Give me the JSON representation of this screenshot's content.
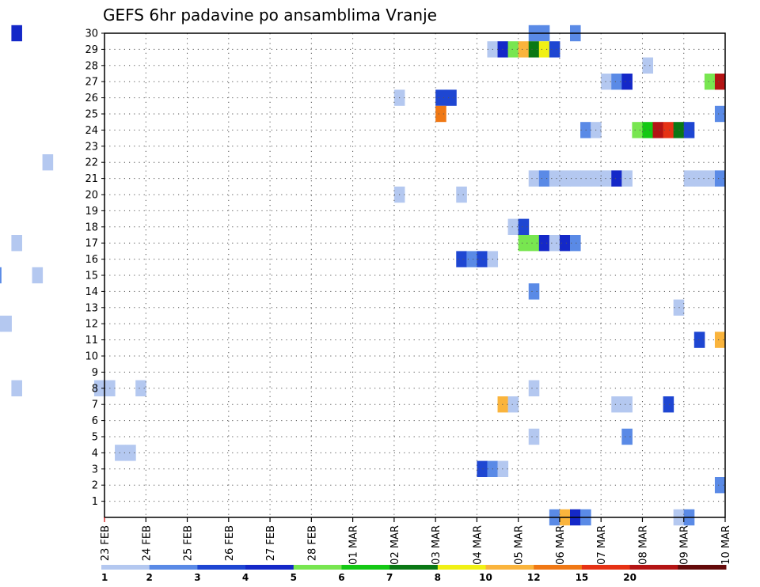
{
  "chart_data": {
    "type": "heatmap",
    "title": "GEFS 6hr padavine po ansamblima Vranje",
    "y_ticks": [
      "1",
      "2",
      "3",
      "4",
      "5",
      "6",
      "7",
      "8",
      "9",
      "10",
      "11",
      "12",
      "13",
      "14",
      "15",
      "16",
      "17",
      "18",
      "19",
      "20",
      "21",
      "22",
      "23",
      "24",
      "25",
      "26",
      "27",
      "28",
      "29",
      "30"
    ],
    "x_ticks": [
      "23 FEB",
      "24 FEB",
      "25 FEB",
      "26 FEB",
      "27 FEB",
      "28 FEB",
      "01 MAR",
      "02 MAR",
      "03 MAR",
      "04 MAR",
      "05 MAR",
      "06 MAR",
      "07 MAR",
      "08 MAR",
      "09 MAR",
      "10 MAR"
    ],
    "x_unit": "6-hour step",
    "grid": true,
    "colorscale": {
      "labels": [
        "1",
        "2",
        "3",
        "4",
        "5",
        "6",
        "7",
        "8",
        "10",
        "12",
        "15",
        "20"
      ],
      "colors": [
        "#b4c8f0",
        "#5a8ae6",
        "#1e46d2",
        "#1428c8",
        "#78e650",
        "#14c814",
        "#0a7814",
        "#f0f014",
        "#fab43c",
        "#f07814",
        "#e63214",
        "#b41414",
        "#640a0a"
      ]
    },
    "cells": [
      {
        "member": 30,
        "step": 52,
        "cls": 4
      },
      {
        "member": 30,
        "step": 102,
        "cls": 2
      },
      {
        "member": 30,
        "step": 103,
        "cls": 2
      },
      {
        "member": 30,
        "step": 106,
        "cls": 2
      },
      {
        "member": 29,
        "step": 98,
        "cls": 1
      },
      {
        "member": 29,
        "step": 99,
        "cls": 4
      },
      {
        "member": 29,
        "step": 100,
        "cls": 5
      },
      {
        "member": 29,
        "step": 101,
        "cls": 9
      },
      {
        "member": 29,
        "step": 102,
        "cls": 7
      },
      {
        "member": 29,
        "step": 103,
        "cls": 8
      },
      {
        "member": 29,
        "step": 104,
        "cls": 3
      },
      {
        "member": 28,
        "step": 113,
        "cls": 1
      },
      {
        "member": 27,
        "step": 109,
        "cls": 1
      },
      {
        "member": 27,
        "step": 110,
        "cls": 2
      },
      {
        "member": 27,
        "step": 111,
        "cls": 4
      },
      {
        "member": 27,
        "step": 119,
        "cls": 5
      },
      {
        "member": 27,
        "step": 120,
        "cls": 12
      },
      {
        "member": 26,
        "step": 89,
        "cls": 1
      },
      {
        "member": 26,
        "step": 93,
        "cls": 3
      },
      {
        "member": 26,
        "step": 94,
        "cls": 3
      },
      {
        "member": 25,
        "step": 93,
        "cls": 10
      },
      {
        "member": 25,
        "step": 120,
        "cls": 2
      },
      {
        "member": 24,
        "step": 107,
        "cls": 2
      },
      {
        "member": 24,
        "step": 108,
        "cls": 1
      },
      {
        "member": 24,
        "step": 112,
        "cls": 5
      },
      {
        "member": 24,
        "step": 113,
        "cls": 6
      },
      {
        "member": 24,
        "step": 114,
        "cls": 12
      },
      {
        "member": 24,
        "step": 115,
        "cls": 11
      },
      {
        "member": 24,
        "step": 116,
        "cls": 7
      },
      {
        "member": 24,
        "step": 117,
        "cls": 3
      },
      {
        "member": 22,
        "step": 55,
        "cls": 1
      },
      {
        "member": 21,
        "step": 102,
        "cls": 1
      },
      {
        "member": 21,
        "step": 103,
        "cls": 2
      },
      {
        "member": 21,
        "step": 104,
        "cls": 1
      },
      {
        "member": 21,
        "step": 105,
        "cls": 1
      },
      {
        "member": 21,
        "step": 106,
        "cls": 1
      },
      {
        "member": 21,
        "step": 107,
        "cls": 1
      },
      {
        "member": 21,
        "step": 108,
        "cls": 1
      },
      {
        "member": 21,
        "step": 109,
        "cls": 1
      },
      {
        "member": 21,
        "step": 110,
        "cls": 4
      },
      {
        "member": 21,
        "step": 111,
        "cls": 1
      },
      {
        "member": 21,
        "step": 117,
        "cls": 1
      },
      {
        "member": 21,
        "step": 118,
        "cls": 1
      },
      {
        "member": 21,
        "step": 119,
        "cls": 1
      },
      {
        "member": 21,
        "step": 120,
        "cls": 2
      },
      {
        "member": 20,
        "step": 89,
        "cls": 1
      },
      {
        "member": 20,
        "step": 95,
        "cls": 1
      },
      {
        "member": 18,
        "step": 100,
        "cls": 1
      },
      {
        "member": 18,
        "step": 101,
        "cls": 3
      },
      {
        "member": 17,
        "step": 52,
        "cls": 1
      },
      {
        "member": 17,
        "step": 101,
        "cls": 5
      },
      {
        "member": 17,
        "step": 102,
        "cls": 5
      },
      {
        "member": 17,
        "step": 103,
        "cls": 4
      },
      {
        "member": 17,
        "step": 104,
        "cls": 1
      },
      {
        "member": 17,
        "step": 105,
        "cls": 4
      },
      {
        "member": 17,
        "step": 106,
        "cls": 2
      },
      {
        "member": 16,
        "step": 95,
        "cls": 3
      },
      {
        "member": 16,
        "step": 96,
        "cls": 2
      },
      {
        "member": 16,
        "step": 97,
        "cls": 3
      },
      {
        "member": 16,
        "step": 98,
        "cls": 1
      },
      {
        "member": 15,
        "step": 50,
        "cls": 2
      },
      {
        "member": 15,
        "step": 54,
        "cls": 1
      },
      {
        "member": 14,
        "step": 102,
        "cls": 2
      },
      {
        "member": 13,
        "step": 116,
        "cls": 1
      },
      {
        "member": 12,
        "step": 50,
        "cls": 1
      },
      {
        "member": 12,
        "step": 51,
        "cls": 1
      },
      {
        "member": 11,
        "step": 118,
        "cls": 3
      },
      {
        "member": 11,
        "step": 120,
        "cls": 9
      },
      {
        "member": 8,
        "step": 52,
        "cls": 1
      },
      {
        "member": 8,
        "step": 60,
        "cls": 1
      },
      {
        "member": 8,
        "step": 61,
        "cls": 1
      },
      {
        "member": 8,
        "step": 64,
        "cls": 1
      },
      {
        "member": 8,
        "step": 102,
        "cls": 1
      },
      {
        "member": 7,
        "step": 99,
        "cls": 9
      },
      {
        "member": 7,
        "step": 100,
        "cls": 1
      },
      {
        "member": 7,
        "step": 110,
        "cls": 1
      },
      {
        "member": 7,
        "step": 111,
        "cls": 1
      },
      {
        "member": 7,
        "step": 115,
        "cls": 3
      },
      {
        "member": 5,
        "step": 102,
        "cls": 1
      },
      {
        "member": 5,
        "step": 111,
        "cls": 2
      },
      {
        "member": 4,
        "step": 62,
        "cls": 1
      },
      {
        "member": 4,
        "step": 63,
        "cls": 1
      },
      {
        "member": 3,
        "step": 97,
        "cls": 3
      },
      {
        "member": 3,
        "step": 98,
        "cls": 2
      },
      {
        "member": 3,
        "step": 99,
        "cls": 1
      },
      {
        "member": 2,
        "step": 120,
        "cls": 2
      },
      {
        "member": 0,
        "step": 104,
        "cls": 2
      },
      {
        "member": 0,
        "step": 105,
        "cls": 9
      },
      {
        "member": 0,
        "step": 106,
        "cls": 4
      },
      {
        "member": 0,
        "step": 107,
        "cls": 2
      },
      {
        "member": 0,
        "step": 116,
        "cls": 1
      },
      {
        "member": 0,
        "step": 117,
        "cls": 2
      }
    ]
  }
}
